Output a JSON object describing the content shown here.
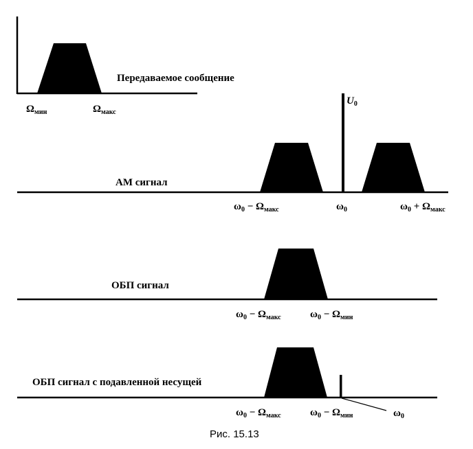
{
  "panel1": {
    "title": "Передаваемое сообщение",
    "left_base": "Ω",
    "left_sub": "мин",
    "right_base": "Ω",
    "right_sub": "макс"
  },
  "panel2": {
    "title": "АМ сигнал",
    "carrier_base": "U",
    "carrier_sub": "0",
    "left_pre": "ω",
    "left_pre_sub": "0",
    "left_mid": " − Ω",
    "left_sub": "макс",
    "center_base": "ω",
    "center_sub": "0",
    "right_pre": "ω",
    "right_pre_sub": "0",
    "right_mid": " + Ω",
    "right_sub": "макс"
  },
  "panel3": {
    "title": "ОБП сигнал",
    "left_pre": "ω",
    "left_pre_sub": "0",
    "left_mid": " − Ω",
    "left_sub": "макс",
    "right_pre": "ω",
    "right_pre_sub": "0",
    "right_mid": " − Ω",
    "right_sub": "мин"
  },
  "panel4": {
    "title": "ОБП сигнал с подавленной несущей",
    "left_pre": "ω",
    "left_pre_sub": "0",
    "left_mid": " − Ω",
    "left_sub": "макс",
    "right_pre": "ω",
    "right_pre_sub": "0",
    "right_mid": " − Ω",
    "right_sub": "мин",
    "carrier_base": "ω",
    "carrier_sub": "0"
  },
  "caption": "Рис. 15.13",
  "colors": {
    "ink": "#000000",
    "background": "#ffffff"
  }
}
